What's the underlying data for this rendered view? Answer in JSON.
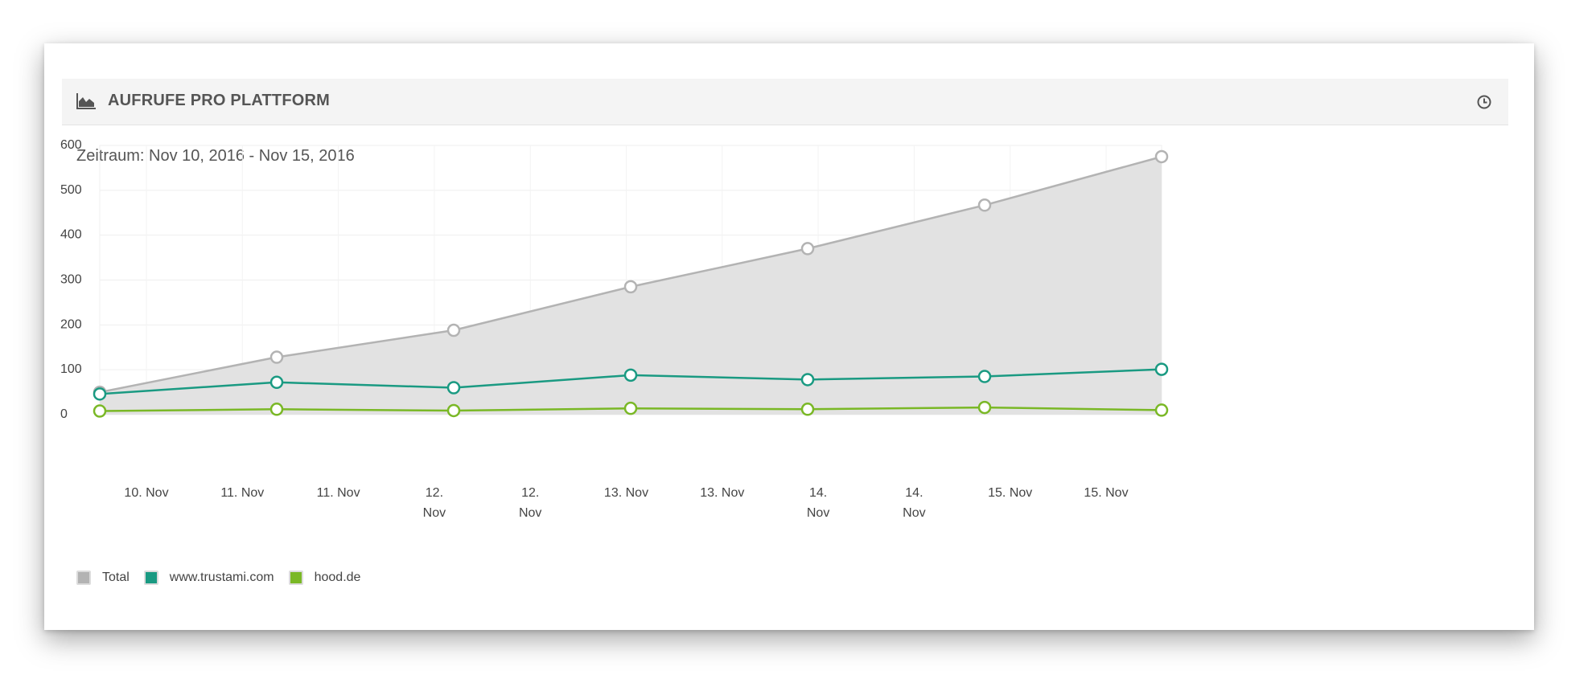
{
  "header": {
    "title": "AUFRUFE PRO PLATTFORM",
    "chart_icon": "area-chart-icon",
    "clock_icon": "clock-icon"
  },
  "period": "Zeitraum: Nov 10, 2016 - Nov 15, 2016",
  "chart_data": {
    "type": "area",
    "x_labels": [
      "10. Nov",
      "11. Nov",
      "11. Nov",
      "12.\nNov",
      "12.\nNov",
      "13. Nov",
      "13. Nov",
      "14.\nNov",
      "14.\nNov",
      "15. Nov",
      "15. Nov"
    ],
    "x": [
      "2016-11-10 00:00",
      "2016-11-11 00:00",
      "2016-11-12 00:00",
      "2016-11-13 00:00",
      "2016-11-14 00:00",
      "2016-11-15 00:00",
      "2016-11-15 23:00"
    ],
    "y_ticks": [
      0,
      100,
      200,
      300,
      400,
      500,
      600
    ],
    "ylim": [
      0,
      600
    ],
    "series": [
      {
        "name": "Total",
        "color": "#b3b3b3",
        "fill": "#e2e2e2",
        "values": [
          50,
          128,
          188,
          285,
          370,
          467,
          575
        ]
      },
      {
        "name": "www.trustami.com",
        "color": "#1a9a82",
        "fill": "none",
        "values": [
          46,
          72,
          60,
          88,
          78,
          85,
          101
        ]
      },
      {
        "name": "hood.de",
        "color": "#7ab826",
        "fill": "none",
        "values": [
          8,
          12,
          9,
          14,
          12,
          16,
          10
        ]
      }
    ],
    "legend_position": "bottom-left",
    "grid": true
  }
}
